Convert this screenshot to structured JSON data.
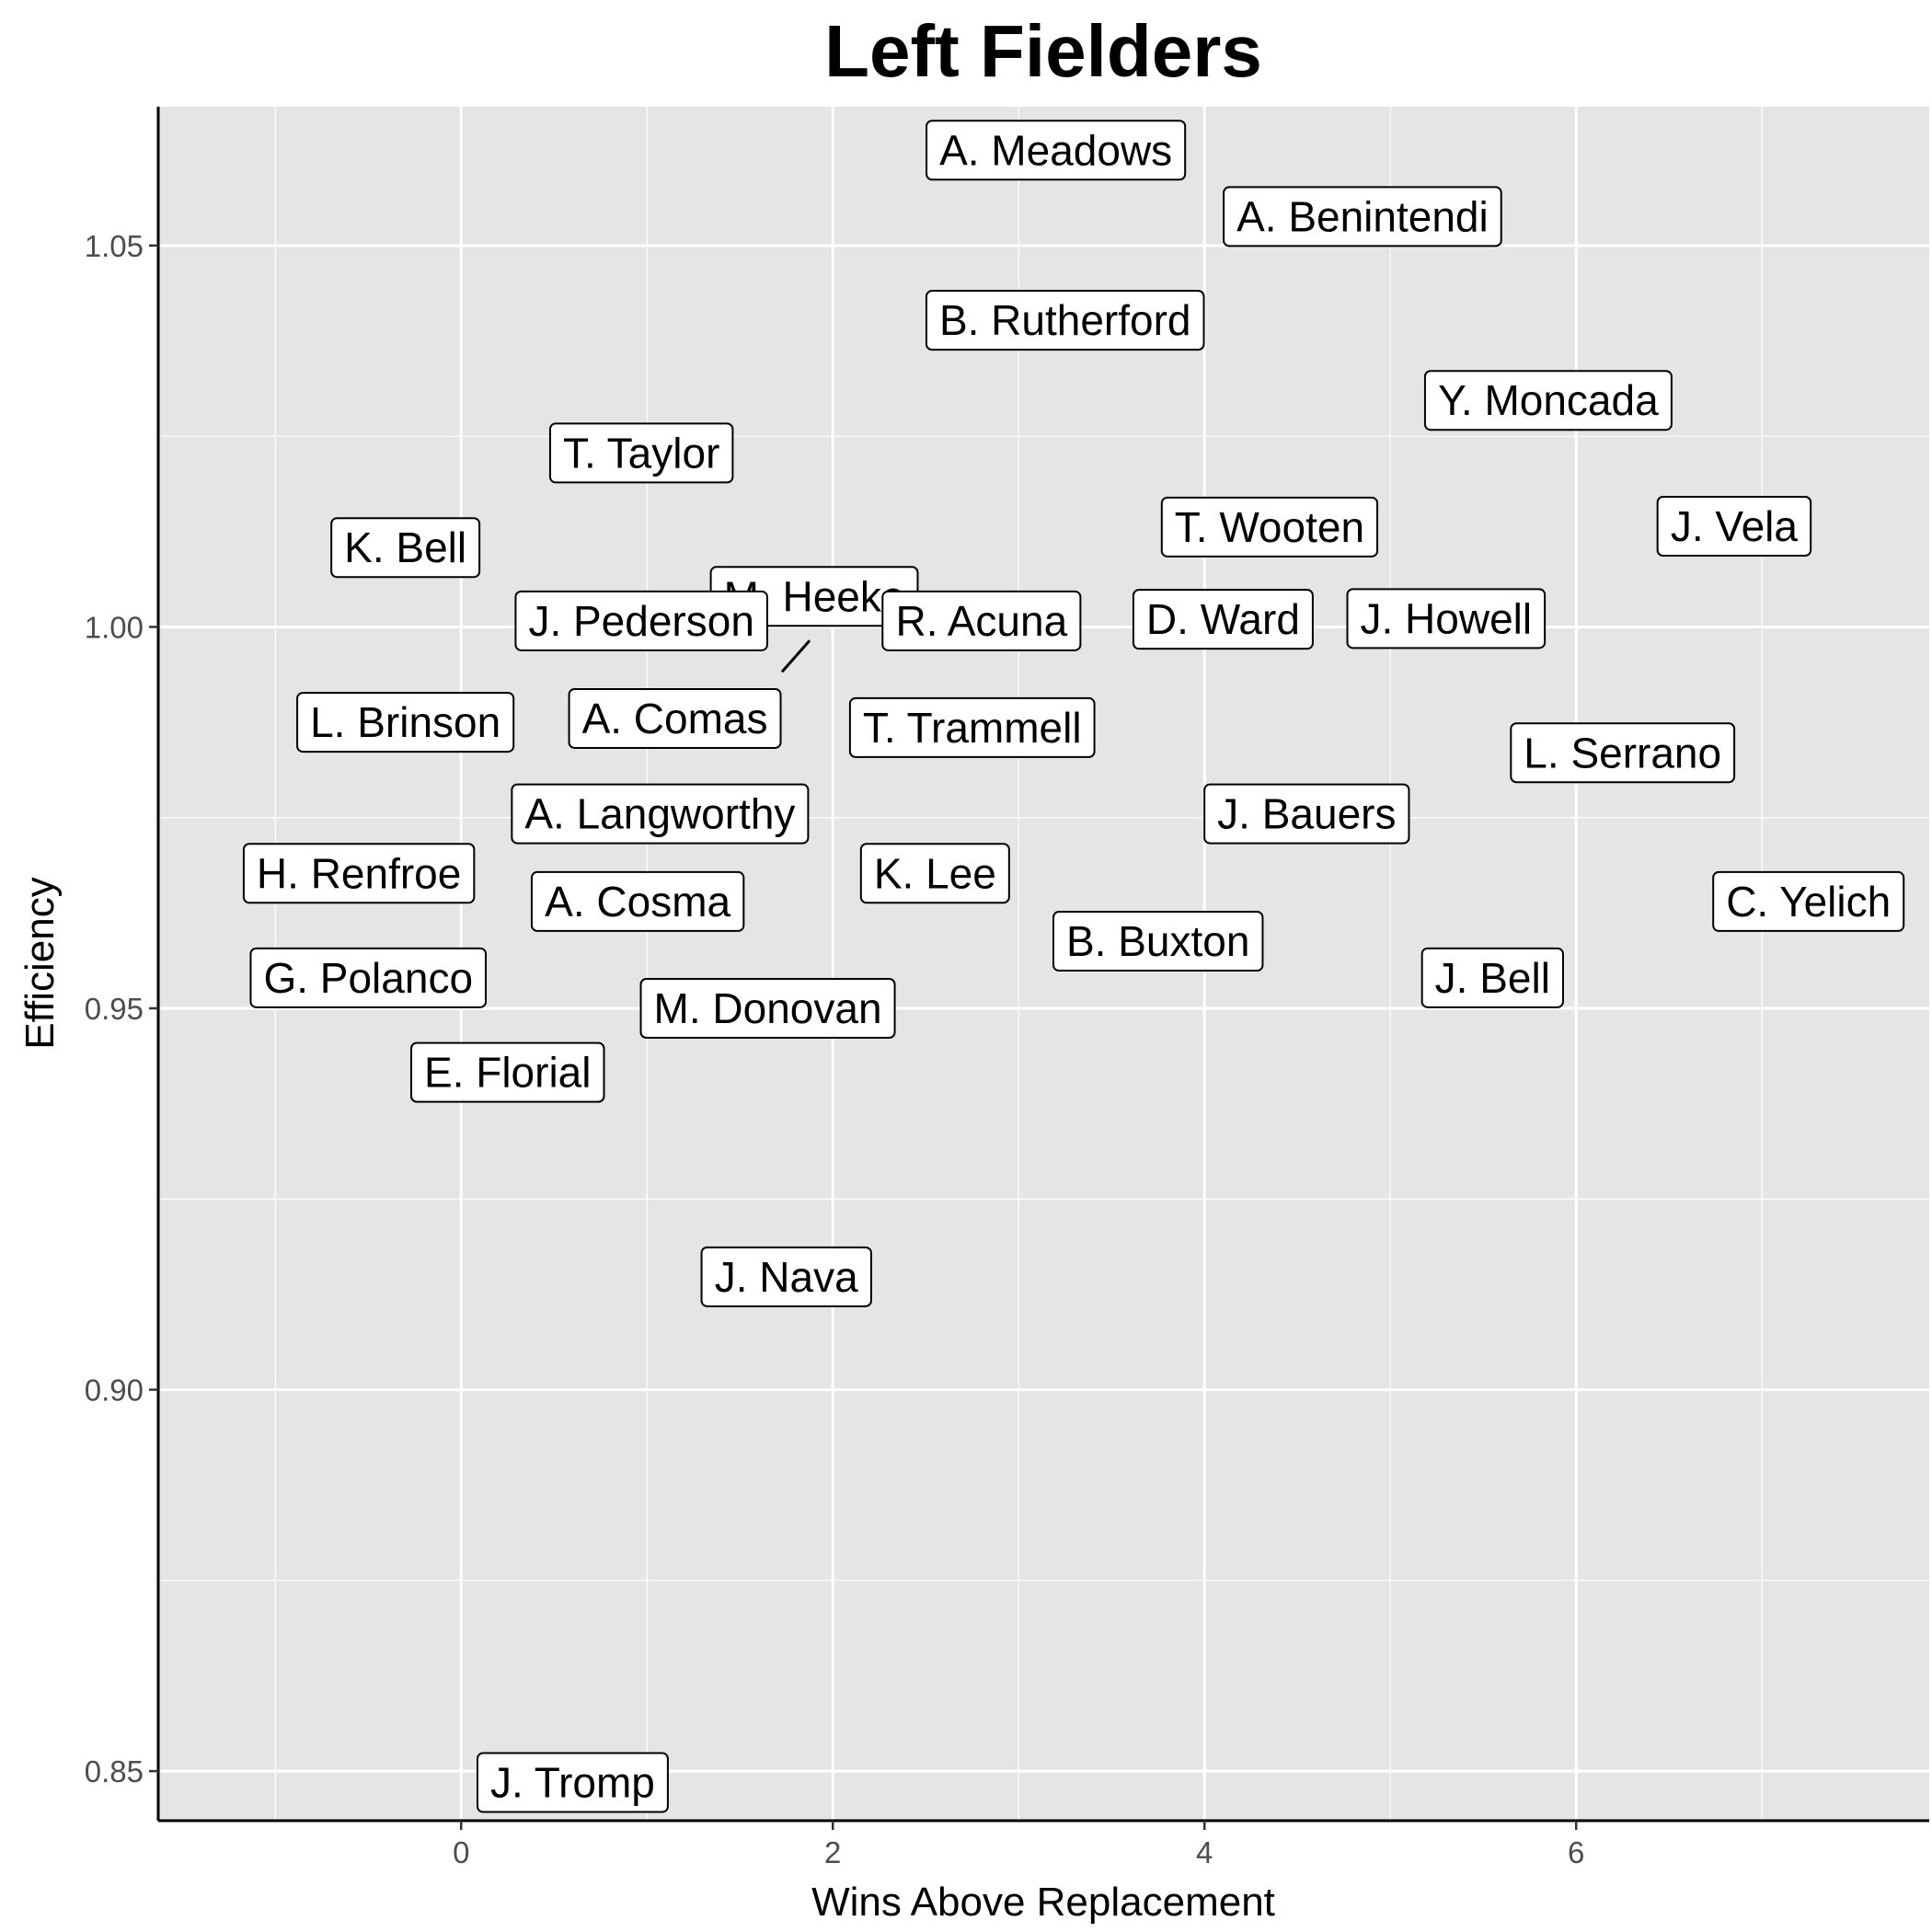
{
  "chart_data": {
    "type": "scatter",
    "title": "Left Fielders",
    "xlabel": "Wins Above Replacement",
    "ylabel": "Efficiency",
    "xlim": [
      -1.63,
      7.9
    ],
    "ylim": [
      0.8435,
      1.0682
    ],
    "x_ticks": [
      0,
      2,
      4,
      6
    ],
    "x_tick_labels": [
      "0",
      "2",
      "4",
      "6"
    ],
    "y_ticks": [
      0.85,
      0.9,
      0.95,
      1.0,
      1.05
    ],
    "y_tick_labels": [
      "0.85",
      "0.90",
      "0.95",
      "1.00",
      "1.05"
    ],
    "grid": true,
    "legend": "none",
    "colors": {
      "panel_background": "#e5e5e5",
      "gridline": "#ffffff",
      "label_fill": "#ffffff",
      "label_border": "#000000",
      "tick_label": "#4d4d4d"
    },
    "points": [
      {
        "name": "A. Meadows",
        "x": 3.2,
        "y": 1.0625
      },
      {
        "name": "A. Benintendi",
        "x": 4.85,
        "y": 1.0538
      },
      {
        "name": "B. Rutherford",
        "x": 3.25,
        "y": 1.0402
      },
      {
        "name": "Y. Moncada",
        "x": 5.85,
        "y": 1.0297
      },
      {
        "name": "T. Taylor",
        "x": 0.97,
        "y": 1.0228
      },
      {
        "name": "K. Bell",
        "x": -0.3,
        "y": 1.0104
      },
      {
        "name": "M. Heeke",
        "x": 1.9,
        "y": 1.004
      },
      {
        "name": "T. Wooten",
        "x": 4.35,
        "y": 1.0131
      },
      {
        "name": "J. Vela",
        "x": 6.85,
        "y": 1.0132
      },
      {
        "name": "J. Pederson",
        "x": 0.97,
        "y": 1.0008
      },
      {
        "name": "R. Acuna",
        "x": 2.8,
        "y": 1.0008
      },
      {
        "name": "D. Ward",
        "x": 4.1,
        "y": 1.001
      },
      {
        "name": "J. Howell",
        "x": 5.3,
        "y": 1.0011
      },
      {
        "name": "L. Brinson",
        "x": -0.3,
        "y": 0.9875
      },
      {
        "name": "A. Comas",
        "x": 1.15,
        "y": 0.988
      },
      {
        "name": "T. Trammell",
        "x": 2.75,
        "y": 0.9868
      },
      {
        "name": "L. Serrano",
        "x": 6.25,
        "y": 0.9835
      },
      {
        "name": "A. Langworthy",
        "x": 1.07,
        "y": 0.9755
      },
      {
        "name": "J. Bauers",
        "x": 4.55,
        "y": 0.9755
      },
      {
        "name": "H. Renfroe",
        "x": -0.55,
        "y": 0.9677
      },
      {
        "name": "K. Lee",
        "x": 2.55,
        "y": 0.9677
      },
      {
        "name": "A. Cosma",
        "x": 0.95,
        "y": 0.964
      },
      {
        "name": "C. Yelich",
        "x": 7.25,
        "y": 0.964
      },
      {
        "name": "B. Buxton",
        "x": 3.75,
        "y": 0.9588
      },
      {
        "name": "G. Polanco",
        "x": -0.5,
        "y": 0.954
      },
      {
        "name": "J. Bell",
        "x": 5.55,
        "y": 0.954
      },
      {
        "name": "M. Donovan",
        "x": 1.65,
        "y": 0.95
      },
      {
        "name": "E. Florial",
        "x": 0.25,
        "y": 0.9416
      },
      {
        "name": "J. Nava",
        "x": 1.75,
        "y": 0.9148
      },
      {
        "name": "J. Tromp",
        "x": 0.6,
        "y": 0.8485
      }
    ]
  }
}
